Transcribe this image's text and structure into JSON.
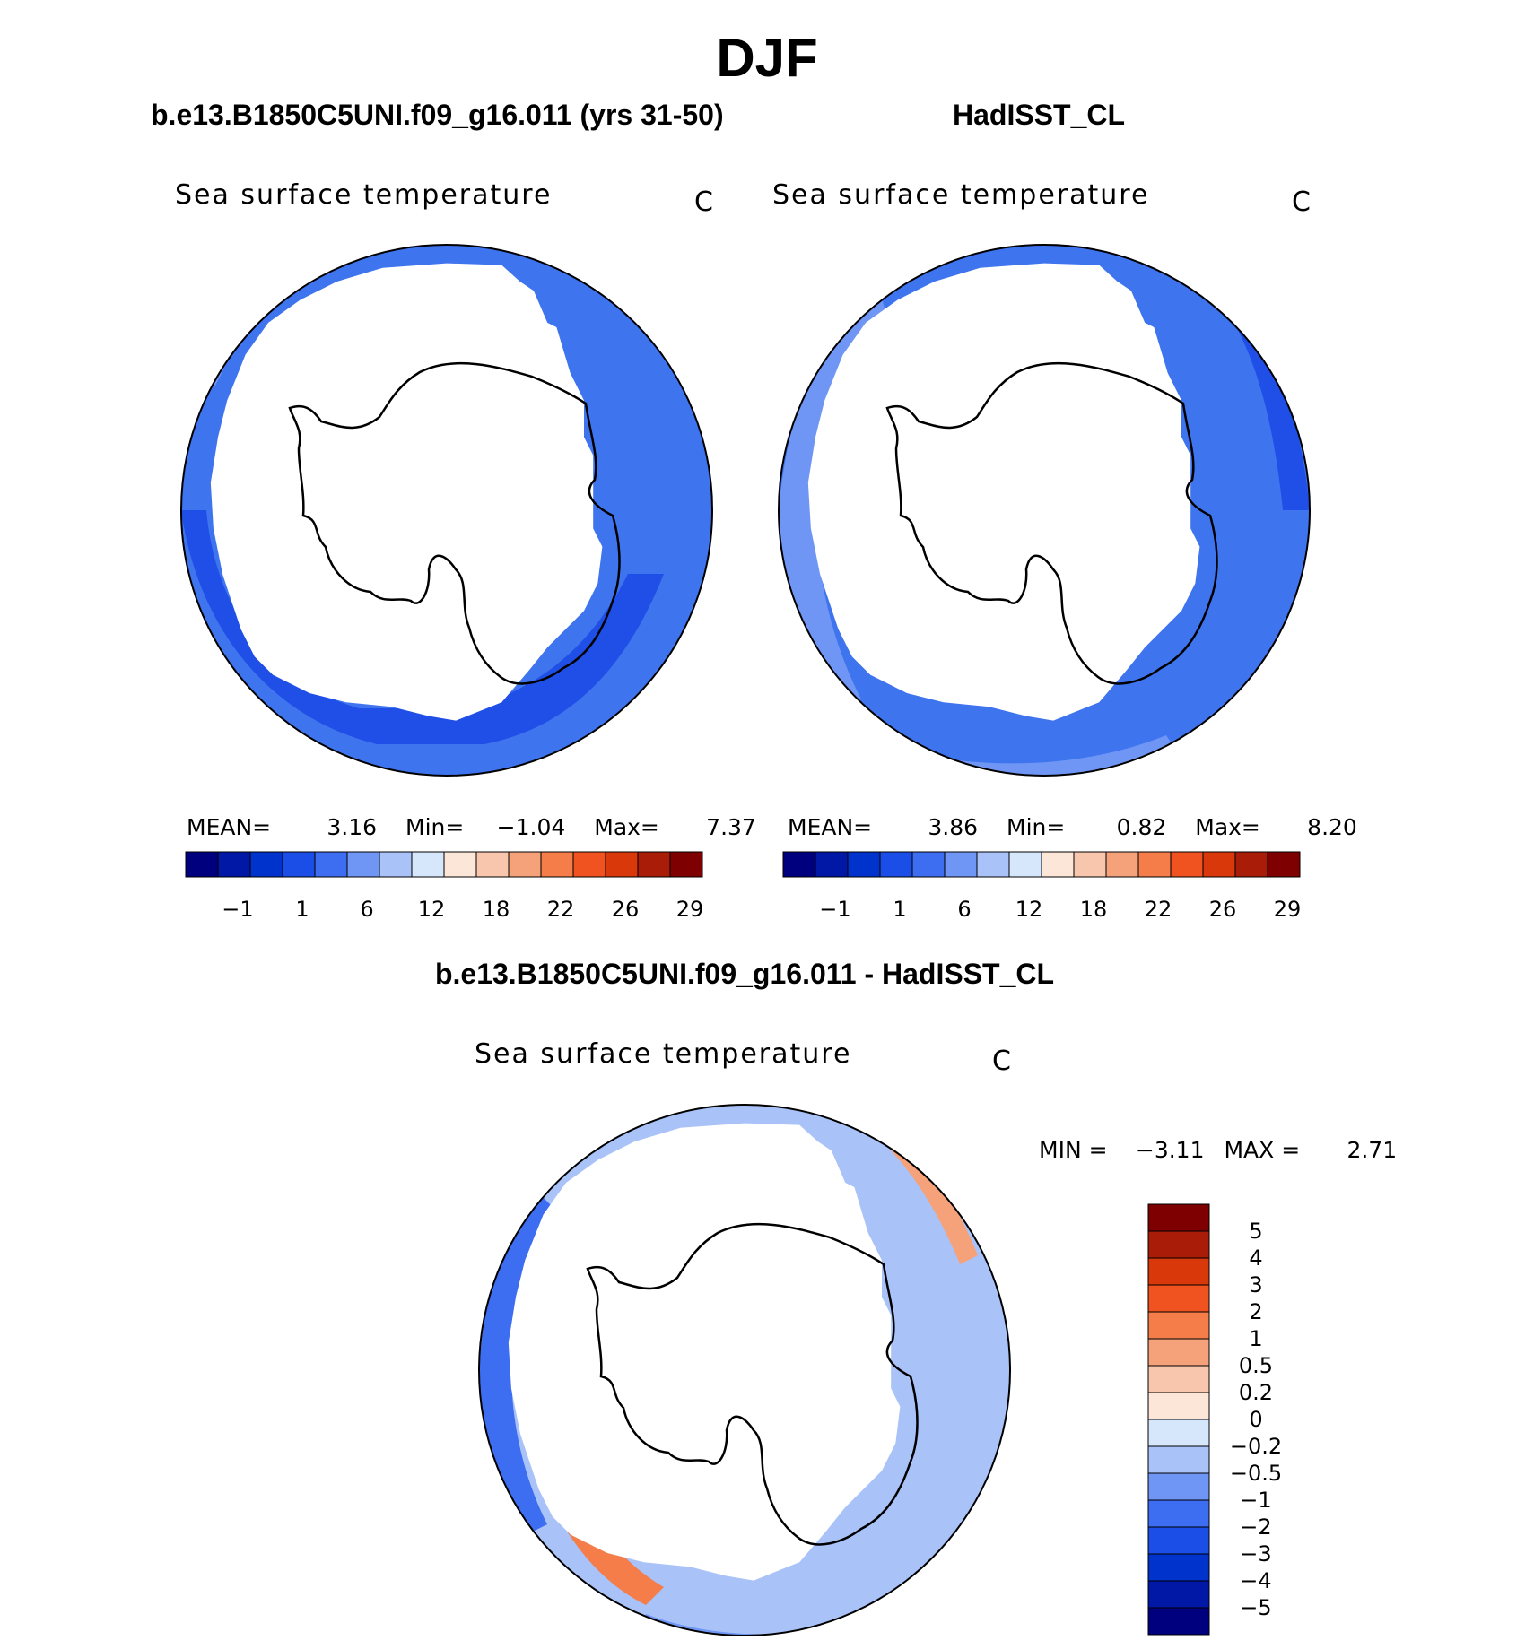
{
  "figure": {
    "season": "DJF",
    "panel_left": {
      "case": "b.e13.B1850C5UNI.f09_g16.011 (yrs 31-50)",
      "variable": "Sea surface temperature",
      "units": "C",
      "stats": {
        "mean_label": "MEAN=",
        "mean": "3.16",
        "min_label": "Min=",
        "min": "−1.04",
        "max_label": "Max=",
        "max": "7.37"
      }
    },
    "panel_right": {
      "case": "HadISST_CL",
      "variable": "Sea surface temperature",
      "units": "C",
      "stats": {
        "mean_label": "MEAN=",
        "mean": "3.86",
        "min_label": "Min=",
        "min": "0.82",
        "max_label": "Max=",
        "max": "8.20"
      }
    },
    "panel_diff": {
      "case": "b.e13.B1850C5UNI.f09_g16.011 - HadISST_CL",
      "variable": "Sea surface temperature",
      "units": "C",
      "stats": {
        "min_label": "MIN =",
        "min": "−3.11",
        "max_label": "MAX =",
        "max": "2.71"
      }
    }
  },
  "chart_data": [
    {
      "type": "map",
      "projection": "south-polar-stereographic",
      "title": "b.e13.B1850C5UNI.f09_g16.011 (yrs 31-50)",
      "variable": "Sea surface temperature",
      "units": "C",
      "mean": 3.16,
      "min": -1.04,
      "max": 7.37,
      "colorbar": {
        "orientation": "horizontal",
        "tick_labels": [
          "−1",
          "1",
          "6",
          "12",
          "18",
          "22",
          "26",
          "29"
        ],
        "colors": [
          "#00007f",
          "#0018a5",
          "#0032cc",
          "#1a4ee6",
          "#3d6df0",
          "#6f96f5",
          "#a9c2f8",
          "#d6e6fb",
          "#fbe6d8",
          "#f8c6ad",
          "#f5a27b",
          "#f47d4a",
          "#f0531f",
          "#d9380a",
          "#a91d08",
          "#7f0000"
        ]
      },
      "field_colors": [
        "#1f4fe6",
        "#3f74ef",
        "#4a7ef3"
      ]
    },
    {
      "type": "map",
      "projection": "south-polar-stereographic",
      "title": "HadISST_CL",
      "variable": "Sea surface temperature",
      "units": "C",
      "mean": 3.86,
      "min": 0.82,
      "max": 8.2,
      "colorbar": {
        "orientation": "horizontal",
        "tick_labels": [
          "−1",
          "1",
          "6",
          "12",
          "18",
          "22",
          "26",
          "29"
        ],
        "colors": [
          "#00007f",
          "#0018a5",
          "#0032cc",
          "#1a4ee6",
          "#3d6df0",
          "#6f96f5",
          "#a9c2f8",
          "#d6e6fb",
          "#fbe6d8",
          "#f8c6ad",
          "#f5a27b",
          "#f47d4a",
          "#f0531f",
          "#d9380a",
          "#a91d08",
          "#7f0000"
        ]
      },
      "field_colors": [
        "#6f96f5",
        "#3f74ef",
        "#1f4fe6"
      ]
    },
    {
      "type": "map",
      "projection": "south-polar-stereographic",
      "title": "b.e13.B1850C5UNI.f09_g16.011 - HadISST_CL",
      "variable": "Sea surface temperature",
      "units": "C",
      "min": -3.11,
      "max": 2.71,
      "colorbar": {
        "orientation": "vertical",
        "tick_labels": [
          "5",
          "4",
          "3",
          "2",
          "1",
          "0.5",
          "0.2",
          "0",
          "−0.2",
          "−0.5",
          "−1",
          "−2",
          "−3",
          "−4",
          "−5"
        ],
        "colors": [
          "#7f0000",
          "#a91d08",
          "#d9380a",
          "#f0531f",
          "#f47d4a",
          "#f5a27b",
          "#f8c6ad",
          "#fbe6d8",
          "#d6e6fb",
          "#a9c2f8",
          "#6f96f5",
          "#3d6df0",
          "#1a4ee6",
          "#0032cc",
          "#0018a5",
          "#00007f"
        ]
      },
      "field_colors": [
        "#a9c2f8",
        "#6f96f5",
        "#3d6df0",
        "#f5a27b",
        "#f47d4a"
      ]
    }
  ]
}
